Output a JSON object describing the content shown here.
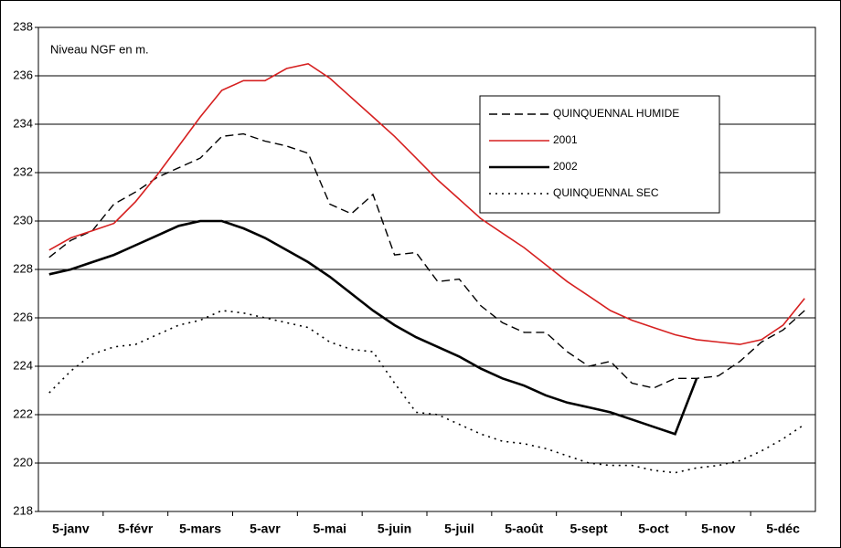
{
  "chart_data": {
    "type": "line",
    "annotation": "Niveau NGF en m.",
    "categories": [
      null,
      "5-janv",
      null,
      null,
      "5-févr",
      null,
      null,
      "5-mars",
      null,
      null,
      "5-avr",
      null,
      null,
      "5-mai",
      null,
      null,
      "5-juin",
      null,
      null,
      "5-juil",
      null,
      null,
      "5-août",
      null,
      null,
      "5-sept",
      null,
      null,
      "5-oct",
      null,
      null,
      "5-nov",
      null,
      null,
      "5-déc",
      null
    ],
    "ylim": [
      218,
      238
    ],
    "yticks": [
      218,
      220,
      222,
      224,
      226,
      228,
      230,
      232,
      234,
      236,
      238
    ],
    "grid": true,
    "legend": "upper right",
    "series": [
      {
        "name": "QUINQUENNAL HUMIDE",
        "color": "#000000",
        "dash": "dashed",
        "values": [
          228.5,
          229.2,
          229.6,
          230.7,
          231.2,
          231.8,
          232.2,
          232.6,
          233.5,
          233.6,
          233.3,
          233.1,
          232.8,
          230.7,
          230.3,
          231.1,
          228.6,
          228.7,
          227.5,
          227.6,
          226.5,
          225.8,
          225.4,
          225.4,
          224.6,
          224.0,
          224.2,
          223.3,
          223.1,
          223.5,
          223.5,
          223.6,
          224.2,
          225.0,
          225.5,
          226.3
        ]
      },
      {
        "name": "2001",
        "color": "#d62020",
        "dash": "solid",
        "values": [
          228.8,
          229.3,
          229.6,
          229.9,
          230.8,
          231.9,
          233.1,
          234.3,
          235.4,
          235.8,
          235.8,
          236.3,
          236.5,
          235.9,
          235.1,
          234.3,
          233.5,
          232.6,
          231.7,
          230.9,
          230.1,
          229.5,
          228.9,
          228.2,
          227.5,
          226.9,
          226.3,
          225.9,
          225.6,
          225.3,
          225.1,
          225.0,
          224.9,
          225.1,
          225.7,
          226.8
        ]
      },
      {
        "name": "2002",
        "color": "#000000",
        "dash": "solid",
        "values": [
          227.8,
          228.0,
          228.3,
          228.6,
          229.0,
          229.4,
          229.8,
          230.0,
          230.0,
          229.7,
          229.3,
          228.8,
          228.3,
          227.7,
          227.0,
          226.3,
          225.7,
          225.2,
          224.8,
          224.4,
          223.9,
          223.5,
          223.2,
          222.8,
          222.5,
          222.3,
          222.1,
          221.8,
          221.5,
          221.2,
          223.5,
          null,
          null,
          null,
          null,
          null
        ]
      },
      {
        "name": "QUINQUENNAL SEC",
        "color": "#000000",
        "dash": "dotted",
        "values": [
          222.9,
          223.8,
          224.5,
          224.8,
          224.9,
          225.3,
          225.7,
          225.9,
          226.3,
          226.2,
          226.0,
          225.8,
          225.6,
          225.0,
          224.7,
          224.6,
          223.3,
          222.1,
          222.0,
          221.6,
          221.2,
          220.9,
          220.8,
          220.6,
          220.3,
          220.0,
          219.9,
          219.9,
          219.7,
          219.6,
          219.8,
          219.9,
          220.1,
          220.5,
          221.0,
          221.6
        ]
      }
    ]
  }
}
